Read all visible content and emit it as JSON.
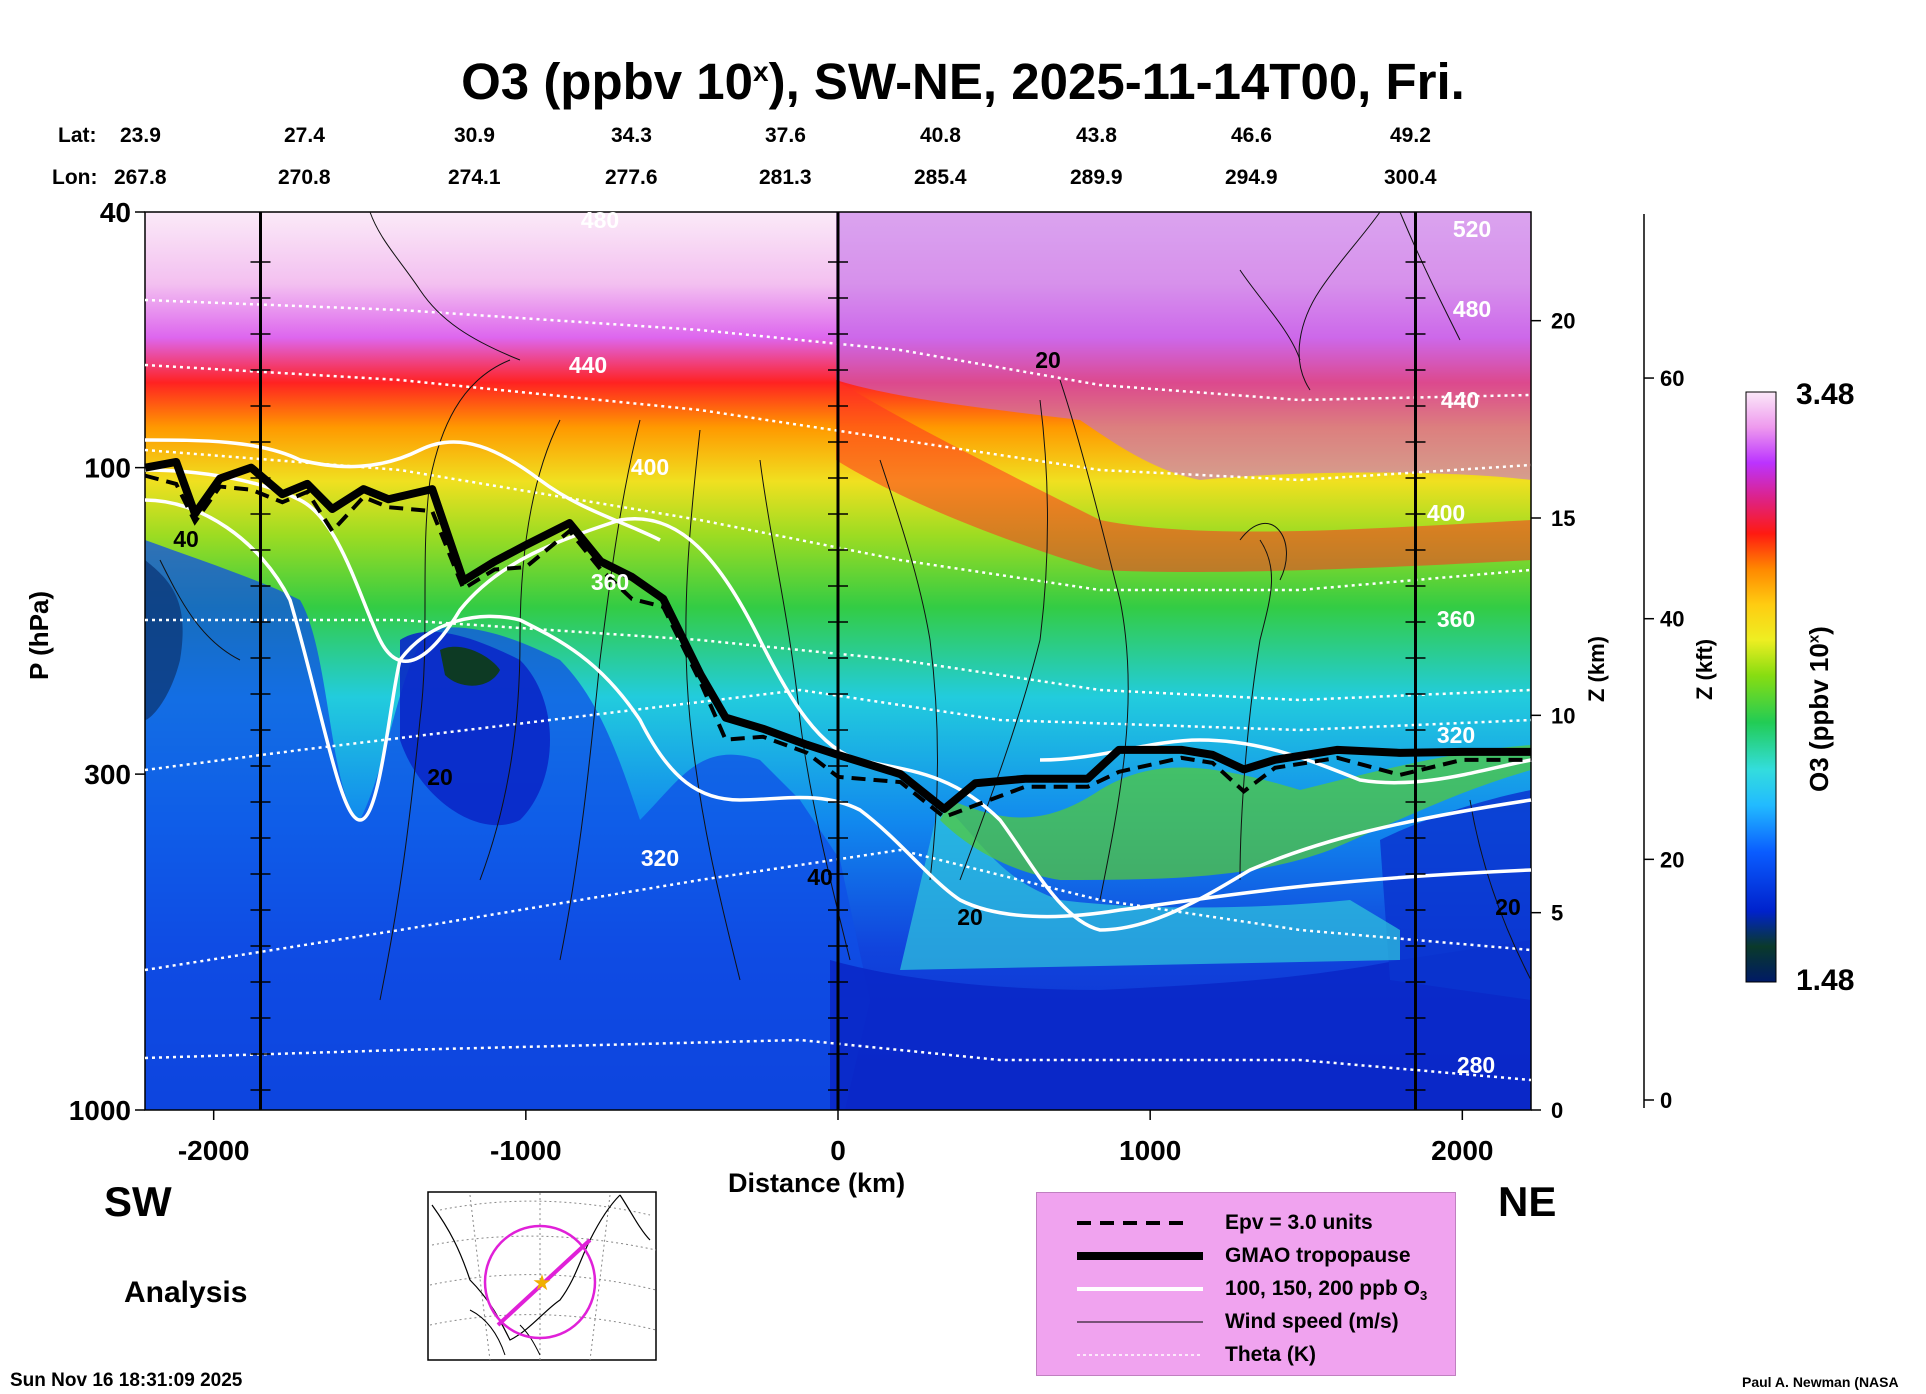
{
  "title": {
    "main": "O3 (ppbv 10",
    "sup": "x",
    "rest": "), SW-NE, 2025-11-14T00, Fri."
  },
  "lat_label": "Lat:",
  "lon_label": "Lon:",
  "lats": [
    "23.9",
    "27.4",
    "30.9",
    "34.3",
    "37.6",
    "40.8",
    "43.8",
    "46.6",
    "49.2"
  ],
  "lons": [
    "267.8",
    "270.8",
    "274.1",
    "277.6",
    "281.3",
    "285.4",
    "289.9",
    "294.9",
    "300.4"
  ],
  "directions": {
    "left": "SW",
    "right": "NE"
  },
  "analysis_label": "Analysis",
  "timestamp": "Sun Nov 16 18:31:09 2025",
  "credit": "Paul A. Newman (NASA",
  "colorbar": {
    "max": "3.48",
    "min": "1.48",
    "label": "O3 (ppbv 10",
    "label_sup": "x",
    "label_end": ")"
  },
  "legend": [
    {
      "style": "dashed",
      "label": "Epv = 3.0 units"
    },
    {
      "style": "thick",
      "label": "GMAO tropopause"
    },
    {
      "style": "white",
      "label": "100, 150, 200 ppb O",
      "sub": "3"
    },
    {
      "style": "thin",
      "label": "Wind speed (m/s)"
    },
    {
      "style": "dotted",
      "label": "Theta (K)"
    }
  ],
  "chart_data": {
    "type": "heatmap",
    "xlabel": "Distance (km)",
    "ylabel": "P (hPa)",
    "z_km_label": "Z (km)",
    "z_kft_label": "Z (kft)",
    "x_range": [
      -2220,
      2220
    ],
    "y_range_hpa": [
      1000,
      40
    ],
    "y_scale": "log",
    "x_ticks": [
      "-2000",
      "-1000",
      "0",
      "1000",
      "2000"
    ],
    "x_tick_values": [
      -2000,
      -1000,
      0,
      1000,
      2000
    ],
    "y_ticks": [
      "40",
      "100",
      "300",
      "1000"
    ],
    "y_tick_values": [
      40,
      100,
      300,
      1000
    ],
    "z_km_ticks": [
      "0",
      "5",
      "10",
      "15",
      "20"
    ],
    "z_km_values": [
      0,
      5,
      10,
      15,
      20
    ],
    "z_kft_ticks": [
      "0",
      "20",
      "40",
      "60"
    ],
    "z_kft_values": [
      0,
      20,
      40,
      60
    ],
    "theta_labels": [
      "440",
      "400",
      "360",
      "320",
      "280",
      "520",
      "480",
      "440",
      "400",
      "360",
      "320",
      "480"
    ],
    "wind_labels": [
      "20",
      "20",
      "40",
      "20",
      "20",
      "40"
    ],
    "tropopause": {
      "x": [
        -2220,
        -2120,
        -2060,
        -1980,
        -1880,
        -1780,
        -1700,
        -1620,
        -1520,
        -1440,
        -1300,
        -1200,
        -1100,
        -1000,
        -860,
        -760,
        -660,
        -560,
        -440,
        -360,
        -240,
        -100,
        0,
        200,
        340,
        440,
        600,
        800,
        900,
        1100,
        1200,
        1300,
        1400,
        1600,
        1800,
        2000,
        2220
      ],
      "p": [
        100,
        98,
        118,
        104,
        100,
        110,
        106,
        116,
        108,
        112,
        108,
        150,
        140,
        132,
        122,
        140,
        148,
        160,
        210,
        245,
        255,
        270,
        280,
        300,
        340,
        310,
        305,
        305,
        275,
        275,
        280,
        295,
        285,
        275,
        278,
        277,
        277
      ]
    },
    "color_range": [
      1.48,
      3.48
    ]
  }
}
